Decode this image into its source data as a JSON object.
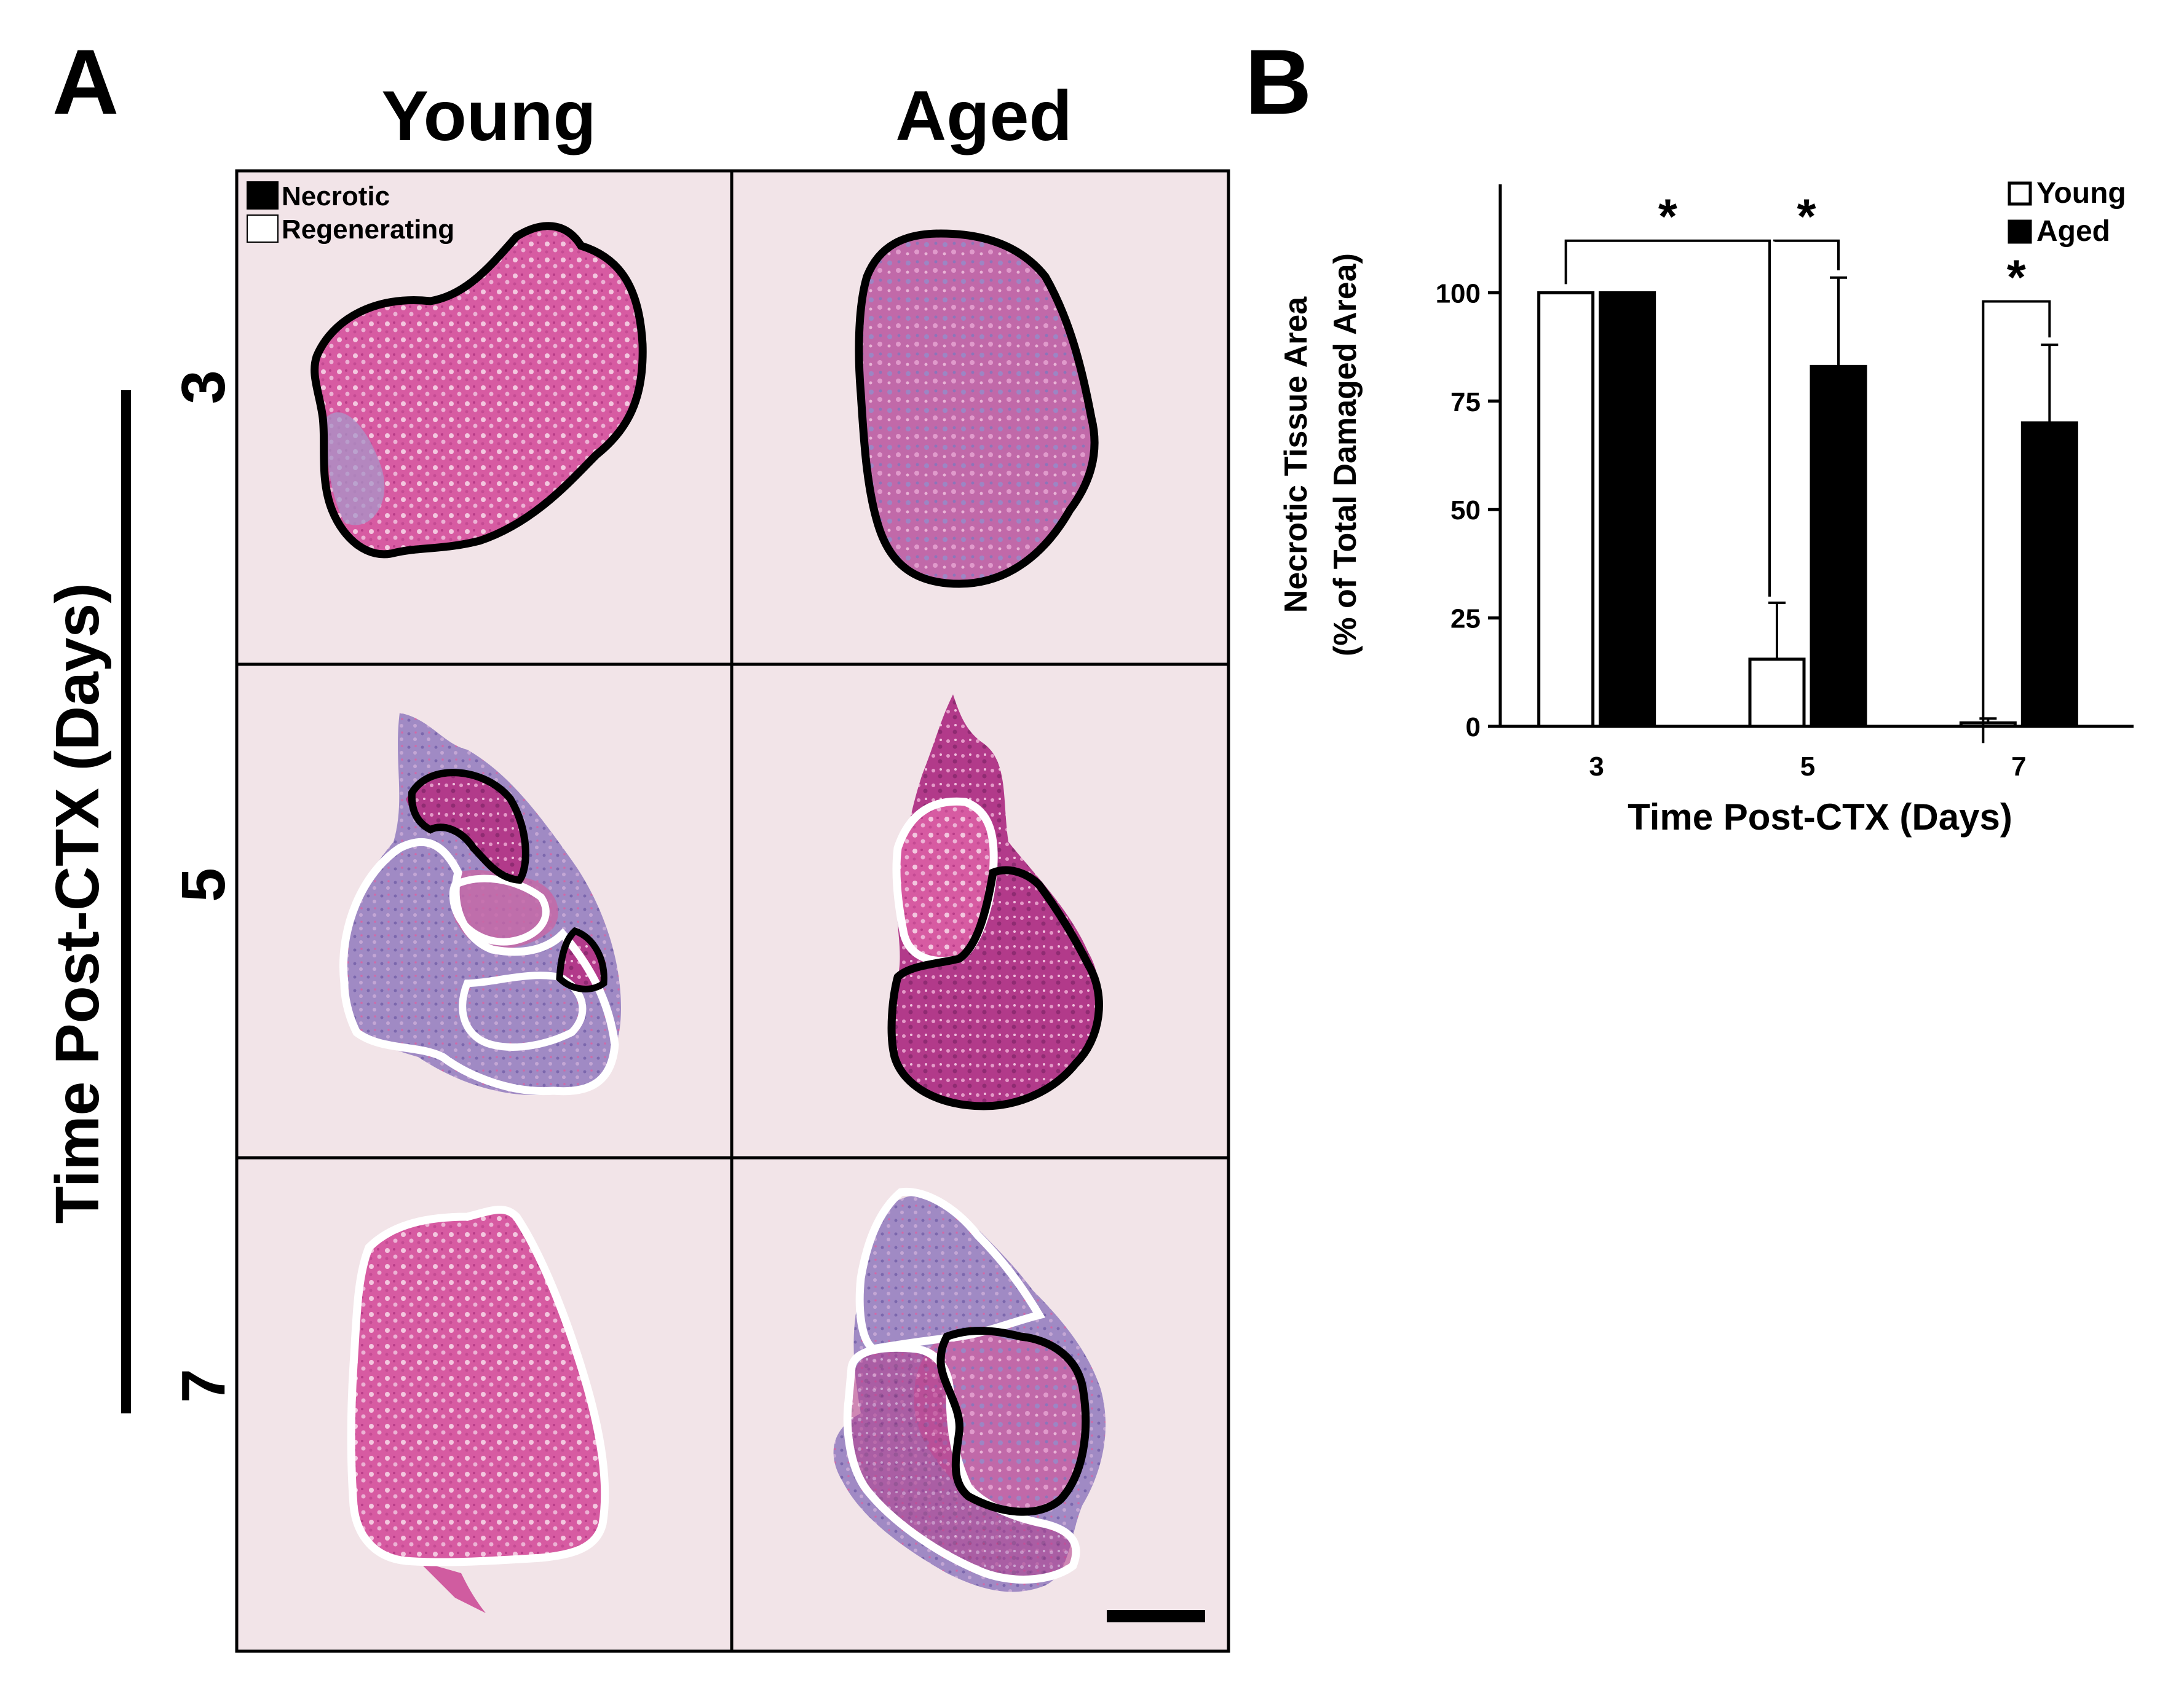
{
  "panel_a": {
    "letter": "A",
    "column_headers": [
      "Young",
      "Aged"
    ],
    "row_labels": [
      "3",
      "5",
      "7"
    ],
    "axis_label": "Time Post-CTX (Days)",
    "legend": [
      {
        "label": "Necrotic",
        "swatch": "#000000"
      },
      {
        "label": "Regenerating",
        "swatch": "#ffffff"
      }
    ],
    "tissue_colors": {
      "background": "#f2e4e8",
      "eosin": "#d44d9a",
      "hematoxylin": "#8a74b6"
    }
  },
  "panel_b": {
    "letter": "B",
    "significance_marker": "*"
  },
  "chart_data": {
    "type": "bar",
    "title": "",
    "ylabel_lines": [
      "Necrotic Tissue Area",
      "(% of Total Damaged Area)"
    ],
    "xlabel": "Time Post-CTX (Days)",
    "categories": [
      "3",
      "5",
      "7"
    ],
    "ylim": [
      0,
      125
    ],
    "yticks": [
      0,
      25,
      50,
      75,
      100
    ],
    "legend_position": "top-right",
    "series": [
      {
        "name": "Young",
        "values": [
          100,
          15.5,
          0.8
        ],
        "errors": [
          0,
          13,
          1
        ],
        "fill": "#ffffff",
        "stroke": "#000000"
      },
      {
        "name": "Aged",
        "values": [
          100,
          83,
          70
        ],
        "errors": [
          0,
          20.5,
          18
        ],
        "fill": "#000000",
        "stroke": "#000000"
      }
    ],
    "significance": [
      {
        "label": "*",
        "between": "Young day 3 vs Young day 5"
      },
      {
        "label": "*",
        "between": "Young vs Aged, day 5"
      },
      {
        "label": "*",
        "between": "Young vs Aged, day 7"
      }
    ]
  }
}
